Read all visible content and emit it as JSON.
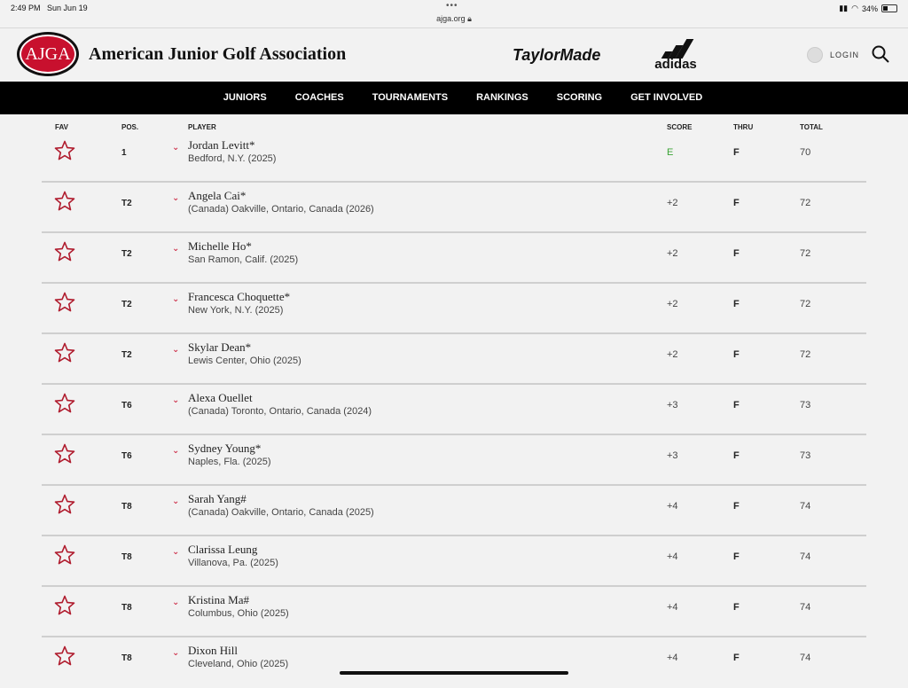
{
  "status": {
    "time": "2:49 PM",
    "date": "Sun Jun 19",
    "url": "ajga.org",
    "battery": "34%",
    "battery_level": 0.34
  },
  "header": {
    "logo_text": "AJGA",
    "site_title": "American Junior Golf Association",
    "sponsor1": "TaylorMade",
    "sponsor2": "adidas",
    "login": "LOGIN"
  },
  "nav": [
    "JUNIORS",
    "COACHES",
    "TOURNAMENTS",
    "RANKINGS",
    "SCORING",
    "GET INVOLVED"
  ],
  "columns": {
    "fav": "FAV",
    "pos": "POS.",
    "player": "PLAYER",
    "score": "SCORE",
    "thru": "THRU",
    "total": "TOTAL"
  },
  "colors": {
    "accent": "#c8102e",
    "even_score": "#3aa335"
  },
  "rows": [
    {
      "pos": "1",
      "name": "Jordan Levitt*",
      "loc": "Bedford, N.Y. (2025)",
      "score": "E",
      "thru": "F",
      "total": "70"
    },
    {
      "pos": "T2",
      "name": "Angela Cai*",
      "loc": "(Canada) Oakville, Ontario, Canada (2026)",
      "score": "+2",
      "thru": "F",
      "total": "72"
    },
    {
      "pos": "T2",
      "name": "Michelle Ho*",
      "loc": "San Ramon, Calif. (2025)",
      "score": "+2",
      "thru": "F",
      "total": "72"
    },
    {
      "pos": "T2",
      "name": "Francesca Choquette*",
      "loc": "New York, N.Y. (2025)",
      "score": "+2",
      "thru": "F",
      "total": "72"
    },
    {
      "pos": "T2",
      "name": "Skylar Dean*",
      "loc": "Lewis Center, Ohio (2025)",
      "score": "+2",
      "thru": "F",
      "total": "72"
    },
    {
      "pos": "T6",
      "name": "Alexa Ouellet",
      "loc": "(Canada) Toronto, Ontario, Canada (2024)",
      "score": "+3",
      "thru": "F",
      "total": "73"
    },
    {
      "pos": "T6",
      "name": "Sydney Young*",
      "loc": "Naples, Fla. (2025)",
      "score": "+3",
      "thru": "F",
      "total": "73"
    },
    {
      "pos": "T8",
      "name": "Sarah Yang#",
      "loc": "(Canada) Oakville, Ontario, Canada (2025)",
      "score": "+4",
      "thru": "F",
      "total": "74"
    },
    {
      "pos": "T8",
      "name": "Clarissa Leung",
      "loc": "Villanova, Pa. (2025)",
      "score": "+4",
      "thru": "F",
      "total": "74"
    },
    {
      "pos": "T8",
      "name": "Kristina Ma#",
      "loc": "Columbus, Ohio (2025)",
      "score": "+4",
      "thru": "F",
      "total": "74"
    },
    {
      "pos": "T8",
      "name": "Dixon Hill",
      "loc": "Cleveland, Ohio (2025)",
      "score": "+4",
      "thru": "F",
      "total": "74"
    }
  ]
}
